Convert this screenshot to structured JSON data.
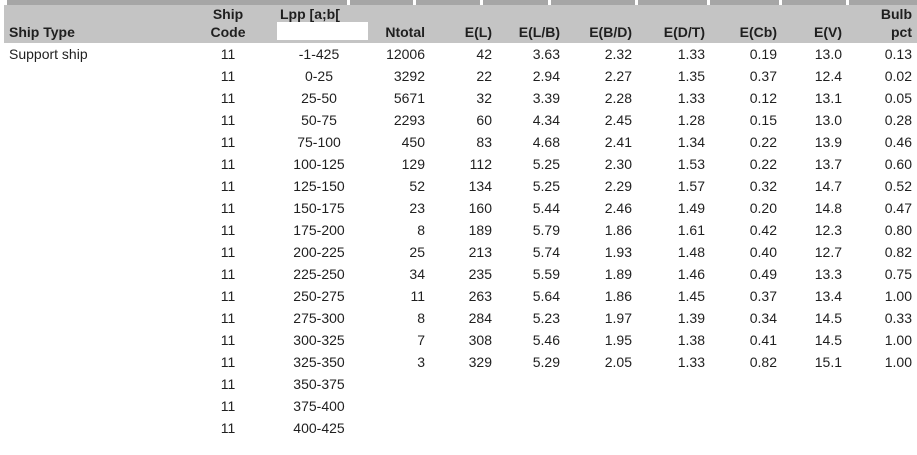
{
  "colors": {
    "header_bg": "#c4c4c4",
    "top_strip": "#a6a6a6",
    "text": "#1f1f1f",
    "page_bg": "#ffffff"
  },
  "table": {
    "header_row1": {
      "ship_code_top": "Ship",
      "lpp_label": "Lpp [a;b[",
      "bulb_top": "Bulb"
    },
    "header_row2": {
      "ship_type": "Ship Type",
      "ship_code_bottom": "Code",
      "ntotal": "Ntotal",
      "e_l": "E(L)",
      "e_lb": "E(L/B)",
      "e_bd": "E(B/D)",
      "e_dt": "E(D/T)",
      "e_cb": "E(Cb)",
      "e_v": "E(V)",
      "bulb_bottom": "pct"
    },
    "rows": [
      [
        "Support ship",
        "11",
        "-1-425",
        "12006",
        "42",
        "3.63",
        "2.32",
        "1.33",
        "0.19",
        "13.0",
        "0.13"
      ],
      [
        "",
        "11",
        "0-25",
        "3292",
        "22",
        "2.94",
        "2.27",
        "1.35",
        "0.37",
        "12.4",
        "0.02"
      ],
      [
        "",
        "11",
        "25-50",
        "5671",
        "32",
        "3.39",
        "2.28",
        "1.33",
        "0.12",
        "13.1",
        "0.05"
      ],
      [
        "",
        "11",
        "50-75",
        "2293",
        "60",
        "4.34",
        "2.45",
        "1.28",
        "0.15",
        "13.0",
        "0.28"
      ],
      [
        "",
        "11",
        "75-100",
        "450",
        "83",
        "4.68",
        "2.41",
        "1.34",
        "0.22",
        "13.9",
        "0.46"
      ],
      [
        "",
        "11",
        "100-125",
        "129",
        "112",
        "5.25",
        "2.30",
        "1.53",
        "0.22",
        "13.7",
        "0.60"
      ],
      [
        "",
        "11",
        "125-150",
        "52",
        "134",
        "5.25",
        "2.29",
        "1.57",
        "0.32",
        "14.7",
        "0.52"
      ],
      [
        "",
        "11",
        "150-175",
        "23",
        "160",
        "5.44",
        "2.46",
        "1.49",
        "0.20",
        "14.8",
        "0.47"
      ],
      [
        "",
        "11",
        "175-200",
        "8",
        "189",
        "5.79",
        "1.86",
        "1.61",
        "0.42",
        "12.3",
        "0.80"
      ],
      [
        "",
        "11",
        "200-225",
        "25",
        "213",
        "5.74",
        "1.93",
        "1.48",
        "0.40",
        "12.7",
        "0.82"
      ],
      [
        "",
        "11",
        "225-250",
        "34",
        "235",
        "5.59",
        "1.89",
        "1.46",
        "0.49",
        "13.3",
        "0.75"
      ],
      [
        "",
        "11",
        "250-275",
        "11",
        "263",
        "5.64",
        "1.86",
        "1.45",
        "0.37",
        "13.4",
        "1.00"
      ],
      [
        "",
        "11",
        "275-300",
        "8",
        "284",
        "5.23",
        "1.97",
        "1.39",
        "0.34",
        "14.5",
        "0.33"
      ],
      [
        "",
        "11",
        "300-325",
        "7",
        "308",
        "5.46",
        "1.95",
        "1.38",
        "0.41",
        "14.5",
        "1.00"
      ],
      [
        "",
        "11",
        "325-350",
        "3",
        "329",
        "5.29",
        "2.05",
        "1.33",
        "0.82",
        "15.1",
        "1.00"
      ],
      [
        "",
        "11",
        "350-375",
        "",
        "",
        "",
        "",
        "",
        "",
        "",
        ""
      ],
      [
        "",
        "11",
        "375-400",
        "",
        "",
        "",
        "",
        "",
        "",
        "",
        ""
      ],
      [
        "",
        "11",
        "400-425",
        "",
        "",
        "",
        "",
        "",
        "",
        "",
        ""
      ]
    ]
  }
}
